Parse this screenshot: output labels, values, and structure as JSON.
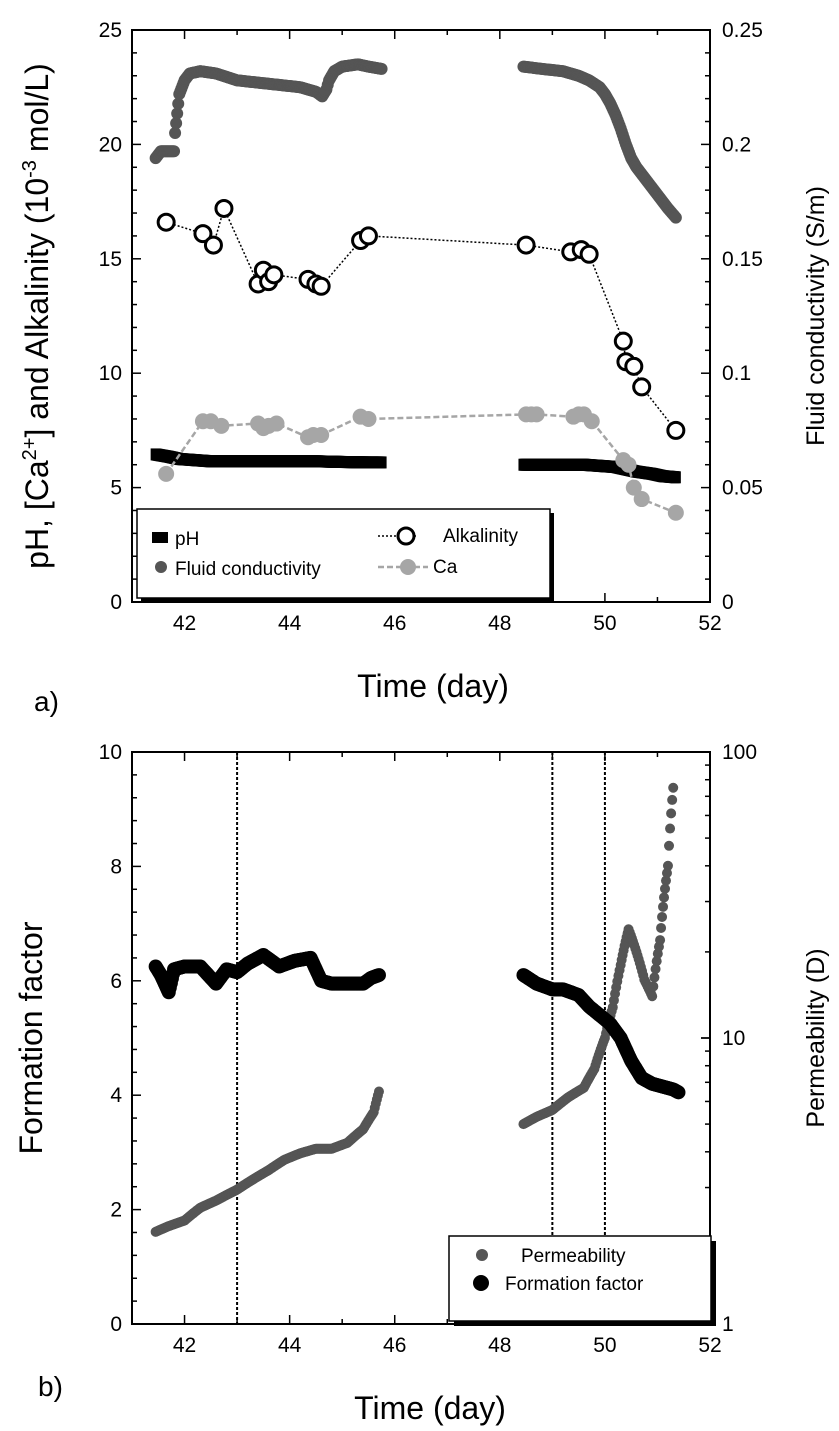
{
  "chart_data": [
    {
      "type": "scatter",
      "panel_label": "a)",
      "xlabel": "Time (day)",
      "ylabel_parts": [
        "pH, [Ca",
        "2+",
        "] and Alkalinity (10",
        "-3",
        "mol/L)"
      ],
      "y2label": "Fluid conductivity (S/m)",
      "xlim": [
        41,
        52
      ],
      "ylim": [
        0,
        25
      ],
      "y2lim": [
        0,
        0.25
      ],
      "xticks": [
        "42",
        "44",
        "46",
        "48",
        "50",
        "52"
      ],
      "yticks": [
        "0",
        "5",
        "10",
        "15",
        "20",
        "25"
      ],
      "y2ticks": [
        "0",
        "0.05",
        "0.1",
        "0.15",
        "0.2",
        "0.25"
      ],
      "grid": false,
      "legend": {
        "position": "bottom-left",
        "entries": [
          "pH",
          "Fluid conductivity",
          "Alkalinity",
          "Ca"
        ]
      },
      "series": [
        {
          "name": "pH",
          "axis": "left",
          "color": "#000000",
          "marker": "square",
          "segments": [
            {
              "x": [
                41.45,
                41.7,
                41.9,
                42.2,
                42.5,
                43.0,
                43.5,
                44.0,
                44.5,
                45.0,
                45.5,
                45.75
              ],
              "y": [
                6.45,
                6.35,
                6.25,
                6.2,
                6.15,
                6.15,
                6.15,
                6.15,
                6.15,
                6.12,
                6.1,
                6.1
              ]
            },
            {
              "x": [
                48.45,
                48.8,
                49.2,
                49.6,
                49.9,
                50.2,
                50.4,
                50.6,
                50.9,
                51.1,
                51.35
              ],
              "y": [
                6.0,
                6.0,
                6.0,
                6.0,
                5.95,
                5.9,
                5.8,
                5.7,
                5.6,
                5.5,
                5.45
              ]
            }
          ]
        },
        {
          "name": "Fluid conductivity",
          "axis": "right",
          "color": "#555555",
          "marker": "circle",
          "segments": [
            {
              "x": [
                41.45,
                41.55,
                41.7,
                41.8,
                41.82,
                41.9,
                42.0,
                42.1,
                42.3,
                42.6,
                43.0,
                43.4,
                43.8,
                44.2,
                44.5,
                44.62,
                44.7,
                44.75,
                44.85,
                45.0,
                45.3,
                45.5,
                45.75
              ],
              "y": [
                0.194,
                0.197,
                0.197,
                0.197,
                0.205,
                0.222,
                0.228,
                0.231,
                0.232,
                0.231,
                0.228,
                0.227,
                0.226,
                0.225,
                0.223,
                0.221,
                0.224,
                0.228,
                0.232,
                0.234,
                0.235,
                0.234,
                0.233
              ]
            },
            {
              "x": [
                48.45,
                48.8,
                49.2,
                49.5,
                49.7,
                49.9,
                50.0,
                50.1,
                50.2,
                50.3,
                50.4,
                50.5,
                50.6,
                50.7,
                50.8,
                50.9,
                51.0,
                51.1,
                51.2,
                51.35
              ],
              "y": [
                0.234,
                0.233,
                0.232,
                0.23,
                0.228,
                0.225,
                0.222,
                0.218,
                0.213,
                0.207,
                0.2,
                0.194,
                0.19,
                0.187,
                0.184,
                0.181,
                0.178,
                0.175,
                0.172,
                0.168
              ]
            }
          ]
        },
        {
          "name": "Alkalinity",
          "axis": "left",
          "color": "#000000",
          "marker": "open-circle",
          "line": "dotted",
          "x": [
            41.65,
            42.35,
            42.55,
            42.75,
            43.4,
            43.5,
            43.6,
            43.7,
            44.35,
            44.5,
            44.6,
            45.35,
            45.5,
            48.5,
            49.35,
            49.55,
            49.7,
            50.35,
            50.4,
            50.55,
            50.7,
            51.35
          ],
          "y": [
            16.6,
            16.1,
            15.6,
            17.2,
            13.9,
            14.5,
            14.0,
            14.3,
            14.1,
            13.9,
            13.8,
            15.8,
            16.0,
            15.6,
            15.3,
            15.4,
            15.2,
            11.4,
            10.5,
            10.3,
            9.4,
            7.5
          ]
        },
        {
          "name": "Ca",
          "axis": "left",
          "color": "#a6a6a6",
          "marker": "circle",
          "line": "dashed",
          "x": [
            41.65,
            42.35,
            42.5,
            42.7,
            43.4,
            43.5,
            43.6,
            43.75,
            44.35,
            44.45,
            44.6,
            45.35,
            45.5,
            48.5,
            48.6,
            48.7,
            49.4,
            49.5,
            49.6,
            49.75,
            50.35,
            50.45,
            50.55,
            50.7,
            51.35
          ],
          "y": [
            5.6,
            7.9,
            7.9,
            7.7,
            7.8,
            7.6,
            7.7,
            7.8,
            7.2,
            7.3,
            7.3,
            8.1,
            8.0,
            8.2,
            8.2,
            8.2,
            8.1,
            8.2,
            8.2,
            7.9,
            6.2,
            6.0,
            5.0,
            4.5,
            3.9
          ]
        }
      ]
    },
    {
      "type": "scatter",
      "panel_label": "b)",
      "xlabel": "Time (day)",
      "ylabel": "Formation factor",
      "y2label": "Permeability (D)",
      "xlim": [
        41,
        52
      ],
      "ylim": [
        0,
        10
      ],
      "y2lim": [
        1,
        100
      ],
      "y2scale": "log",
      "xticks": [
        "42",
        "44",
        "46",
        "48",
        "50",
        "52"
      ],
      "yticks": [
        "0",
        "2",
        "4",
        "6",
        "8",
        "10"
      ],
      "y2ticks": [
        "1",
        "10",
        "100"
      ],
      "grid": false,
      "vlines": [
        43,
        49,
        50
      ],
      "legend": {
        "position": "bottom-right",
        "entries": [
          "Permeability",
          "Formation factor"
        ]
      },
      "series": [
        {
          "name": "Permeability",
          "axis": "right",
          "color": "#555555",
          "marker": "circle",
          "segments": [
            {
              "x": [
                41.45,
                41.7,
                42.0,
                42.3,
                42.6,
                43.0,
                43.3,
                43.6,
                43.9,
                44.2,
                44.5,
                44.8,
                45.1,
                45.4,
                45.6,
                45.7
              ],
              "y": [
                2.1,
                2.2,
                2.3,
                2.55,
                2.7,
                2.95,
                3.2,
                3.45,
                3.75,
                3.95,
                4.1,
                4.1,
                4.3,
                4.8,
                5.5,
                6.5
              ]
            },
            {
              "x": [
                48.45,
                48.7,
                49.0,
                49.3,
                49.6,
                49.8,
                50.0,
                50.15,
                50.3,
                50.45,
                50.6,
                50.75,
                50.9,
                51.05,
                51.2,
                51.3
              ],
              "y": [
                5.0,
                5.3,
                5.6,
                6.2,
                6.7,
                7.8,
                10.0,
                12.8,
                18.0,
                24.0,
                20.0,
                16.0,
                14.0,
                22.0,
                40.0,
                75.0
              ]
            }
          ]
        },
        {
          "name": "Formation factor",
          "axis": "left",
          "color": "#000000",
          "marker": "circle",
          "segments": [
            {
              "x": [
                41.45,
                41.55,
                41.7,
                41.8,
                42.0,
                42.3,
                42.6,
                42.8,
                43.0,
                43.2,
                43.5,
                43.8,
                44.1,
                44.4,
                44.6,
                44.8,
                45.1,
                45.4,
                45.55,
                45.7
              ],
              "y": [
                6.25,
                6.1,
                5.8,
                6.2,
                6.25,
                6.25,
                5.95,
                6.2,
                6.15,
                6.3,
                6.45,
                6.25,
                6.35,
                6.4,
                6.0,
                5.95,
                5.95,
                5.95,
                6.05,
                6.1
              ]
            },
            {
              "x": [
                48.45,
                48.7,
                49.0,
                49.2,
                49.5,
                49.7,
                49.9,
                50.1,
                50.3,
                50.5,
                50.7,
                50.9,
                51.1,
                51.3,
                51.4
              ],
              "y": [
                6.1,
                5.95,
                5.85,
                5.85,
                5.75,
                5.55,
                5.4,
                5.25,
                5.0,
                4.6,
                4.3,
                4.2,
                4.15,
                4.1,
                4.05
              ]
            }
          ]
        }
      ]
    }
  ]
}
